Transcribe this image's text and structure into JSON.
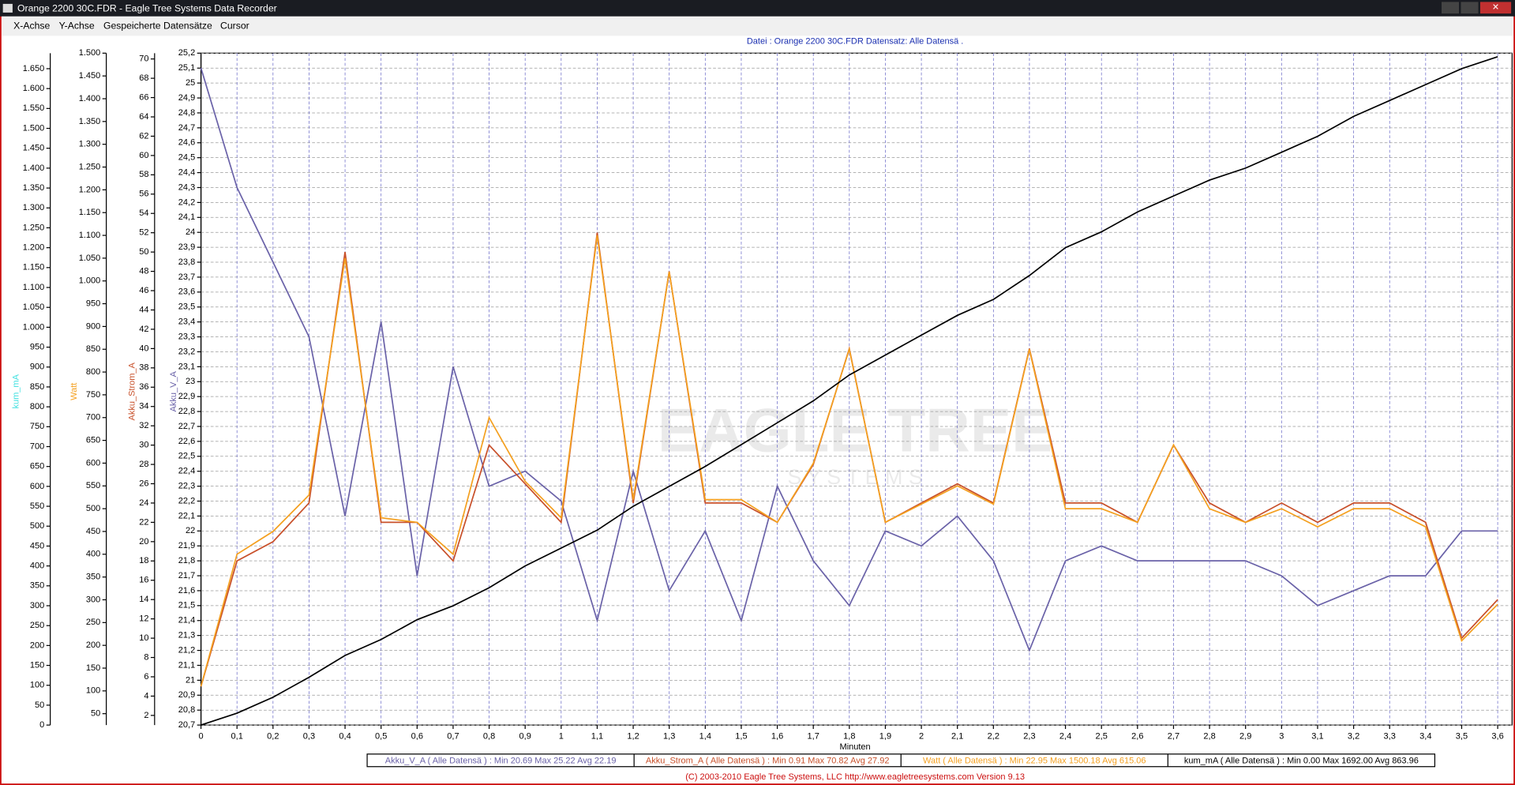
{
  "window": {
    "title": "Orange 2200 30C.FDR - Eagle Tree Systems Data Recorder",
    "menu": [
      "X-Achse",
      "Y-Achse",
      "Gespeicherte Datensätze",
      "Cursor"
    ]
  },
  "chart_data": {
    "type": "line",
    "subtitle": "Datei : Orange 2200 30C.FDR   Datensatz: Alle Datensä .",
    "x_label": "Minuten",
    "watermark": [
      "EAGLE TREE",
      "S Y S T E M S"
    ],
    "grid": true,
    "x": [
      0,
      0.1,
      0.2,
      0.3,
      0.4,
      0.5,
      0.6,
      0.7,
      0.8,
      0.9,
      1.0,
      1.1,
      1.2,
      1.3,
      1.4,
      1.5,
      1.6,
      1.7,
      1.8,
      1.9,
      2.0,
      2.1,
      2.2,
      2.3,
      2.4,
      2.5,
      2.6,
      2.7,
      2.8,
      2.9,
      3.0,
      3.1,
      3.2,
      3.3,
      3.4,
      3.5,
      3.6
    ],
    "xlim": [
      0,
      3.64
    ],
    "xticks": [
      0,
      {
        "value": 0.1,
        "label": "0,1"
      },
      {
        "value": 0.2,
        "label": "0,2"
      },
      {
        "value": 0.3,
        "label": "0,3"
      },
      {
        "value": 0.4,
        "label": "0,4"
      },
      {
        "value": 0.5,
        "label": "0,5"
      },
      {
        "value": 0.6,
        "label": "0,6"
      },
      {
        "value": 0.7,
        "label": "0,7"
      },
      {
        "value": 0.8,
        "label": "0,8"
      },
      {
        "value": 0.9,
        "label": "0,9"
      },
      1,
      {
        "value": 1.1,
        "label": "1,1"
      },
      {
        "value": 1.2,
        "label": "1,2"
      },
      {
        "value": 1.3,
        "label": "1,3"
      },
      {
        "value": 1.4,
        "label": "1,4"
      },
      {
        "value": 1.5,
        "label": "1,5"
      },
      {
        "value": 1.6,
        "label": "1,6"
      },
      {
        "value": 1.7,
        "label": "1,7"
      },
      {
        "value": 1.8,
        "label": "1,8"
      },
      {
        "value": 1.9,
        "label": "1,9"
      },
      2,
      {
        "value": 2.1,
        "label": "2,1"
      },
      {
        "value": 2.2,
        "label": "2,2"
      },
      {
        "value": 2.3,
        "label": "2,3"
      },
      {
        "value": 2.4,
        "label": "2,4"
      },
      {
        "value": 2.5,
        "label": "2,5"
      },
      {
        "value": 2.6,
        "label": "2,6"
      },
      {
        "value": 2.7,
        "label": "2,7"
      },
      {
        "value": 2.8,
        "label": "2,8"
      },
      {
        "value": 2.9,
        "label": "2,9"
      },
      3,
      {
        "value": 3.1,
        "label": "3,1"
      },
      {
        "value": 3.2,
        "label": "3,2"
      },
      {
        "value": 3.3,
        "label": "3,3"
      },
      {
        "value": 3.4,
        "label": "3,4"
      },
      {
        "value": 3.5,
        "label": "3,5"
      },
      {
        "value": 3.6,
        "label": "3,6"
      }
    ],
    "ylim": [
      0,
      1689
    ],
    "yticks": [
      0,
      50,
      100,
      150,
      200,
      250,
      300,
      350,
      400,
      450,
      500,
      550,
      600,
      650,
      700,
      750,
      800,
      850,
      900,
      950,
      {
        "value": 1000,
        "label": "1.000"
      },
      {
        "value": 1050,
        "label": "1.050"
      },
      {
        "value": 1100,
        "label": "1.100"
      },
      {
        "value": 1150,
        "label": "1.150"
      },
      {
        "value": 1200,
        "label": "1.200"
      },
      {
        "value": 1250,
        "label": "1.250"
      },
      {
        "value": 1300,
        "label": "1.300"
      },
      {
        "value": 1350,
        "label": "1.350"
      },
      {
        "value": 1400,
        "label": "1.400"
      },
      {
        "value": 1450,
        "label": "1.450"
      },
      {
        "value": 1500,
        "label": "1.500"
      },
      {
        "value": 1550,
        "label": "1.550"
      },
      {
        "value": 1600,
        "label": "1.600"
      },
      {
        "value": 1650,
        "label": "1.650"
      }
    ],
    "y2lim": [
      25,
      1500
    ],
    "y2ticks": [
      50,
      100,
      150,
      200,
      250,
      300,
      350,
      400,
      450,
      500,
      550,
      600,
      650,
      700,
      750,
      800,
      850,
      900,
      950,
      {
        "value": 1000,
        "label": "1.000"
      },
      {
        "value": 1050,
        "label": "1.050"
      },
      {
        "value": 1100,
        "label": "1.100"
      },
      {
        "value": 1150,
        "label": "1.150"
      },
      {
        "value": 1200,
        "label": "1.200"
      },
      {
        "value": 1250,
        "label": "1.250"
      },
      {
        "value": 1300,
        "label": "1.300"
      },
      {
        "value": 1350,
        "label": "1.350"
      },
      {
        "value": 1400,
        "label": "1.400"
      },
      {
        "value": 1450,
        "label": "1.450"
      },
      {
        "value": 1500,
        "label": "1.500"
      }
    ],
    "y3lim": [
      1,
      70.6
    ],
    "y3ticks": [
      2,
      4,
      6,
      8,
      10,
      12,
      14,
      16,
      18,
      20,
      22,
      24,
      26,
      28,
      30,
      32,
      34,
      36,
      38,
      40,
      42,
      44,
      46,
      48,
      50,
      52,
      54,
      56,
      58,
      60,
      62,
      64,
      66,
      68,
      70
    ],
    "y4lim": [
      20.7,
      25.2
    ],
    "y4ticks": [
      {
        "value": 20.7,
        "label": "20,7"
      },
      {
        "value": 20.8,
        "label": "20,8"
      },
      {
        "value": 20.9,
        "label": "20,9"
      },
      21,
      {
        "value": 21.1,
        "label": "21,1"
      },
      {
        "value": 21.2,
        "label": "21,2"
      },
      {
        "value": 21.3,
        "label": "21,3"
      },
      {
        "value": 21.4,
        "label": "21,4"
      },
      {
        "value": 21.5,
        "label": "21,5"
      },
      {
        "value": 21.6,
        "label": "21,6"
      },
      {
        "value": 21.7,
        "label": "21,7"
      },
      {
        "value": 21.8,
        "label": "21,8"
      },
      {
        "value": 21.9,
        "label": "21,9"
      },
      22,
      {
        "value": 22.1,
        "label": "22,1"
      },
      {
        "value": 22.2,
        "label": "22,2"
      },
      {
        "value": 22.3,
        "label": "22,3"
      },
      {
        "value": 22.4,
        "label": "22,4"
      },
      {
        "value": 22.5,
        "label": "22,5"
      },
      {
        "value": 22.6,
        "label": "22,6"
      },
      {
        "value": 22.7,
        "label": "22,7"
      },
      {
        "value": 22.8,
        "label": "22,8"
      },
      {
        "value": 22.9,
        "label": "22,9"
      },
      23,
      {
        "value": 23.1,
        "label": "23,1"
      },
      {
        "value": 23.2,
        "label": "23,2"
      },
      {
        "value": 23.3,
        "label": "23,3"
      },
      {
        "value": 23.4,
        "label": "23,4"
      },
      {
        "value": 23.5,
        "label": "23,5"
      },
      {
        "value": 23.6,
        "label": "23,6"
      },
      {
        "value": 23.7,
        "label": "23,7"
      },
      {
        "value": 23.8,
        "label": "23,8"
      },
      {
        "value": 23.9,
        "label": "23,9"
      },
      24,
      {
        "value": 24.1,
        "label": "24,1"
      },
      {
        "value": 24.2,
        "label": "24,2"
      },
      {
        "value": 24.3,
        "label": "24,3"
      },
      {
        "value": 24.4,
        "label": "24,4"
      },
      {
        "value": 24.5,
        "label": "24,5"
      },
      {
        "value": 24.6,
        "label": "24,6"
      },
      {
        "value": 24.7,
        "label": "24,7"
      },
      {
        "value": 24.8,
        "label": "24,8"
      },
      {
        "value": 24.9,
        "label": "24,9"
      },
      25,
      {
        "value": 25.1,
        "label": "25,1"
      },
      {
        "value": 25.2,
        "label": "25,2"
      }
    ],
    "series": [
      {
        "name": "Akku_V_A",
        "axis": "y4",
        "color": "#6a62a8",
        "label_color": "#6a62a8",
        "stats": "Akku_V_A ( Alle Datensä ) : Min 20.69   Max 25.22   Avg 22.19",
        "values": [
          25.1,
          24.3,
          23.8,
          23.3,
          22.1,
          23.4,
          21.7,
          23.1,
          22.3,
          22.4,
          22.2,
          21.4,
          22.4,
          21.6,
          22.0,
          21.4,
          22.3,
          21.8,
          21.5,
          22.0,
          21.9,
          22.1,
          21.8,
          21.2,
          21.8,
          21.9,
          21.8,
          21.8,
          21.8,
          21.8,
          21.7,
          21.5,
          21.6,
          21.7,
          21.7,
          22.0,
          22.0
        ]
      },
      {
        "name": "Akku_Strom_A",
        "axis": "y3",
        "color": "#c8502a",
        "label_color": "#c8502a",
        "stats": "Akku_Strom_A ( Alle Datensä ) : Min 0.91   Max 70.82   Avg 27.92",
        "values": [
          5,
          18,
          20,
          24,
          50,
          22,
          22,
          18,
          30,
          26,
          22,
          52,
          24,
          48,
          24,
          24,
          22,
          28,
          40,
          22,
          24,
          26,
          24,
          40,
          24,
          24,
          22,
          30,
          24,
          22,
          24,
          22,
          24,
          24,
          22,
          10,
          14
        ]
      },
      {
        "name": "Watt",
        "axis": "y2",
        "color": "#f4a020",
        "label_color": "#f4a020",
        "stats": "Watt ( Alle Datensä ) : Min 22.95   Max 1500.18   Avg 615.06",
        "values": [
          110,
          400,
          450,
          530,
          1050,
          480,
          470,
          400,
          700,
          560,
          480,
          1100,
          520,
          1020,
          520,
          520,
          470,
          600,
          850,
          470,
          510,
          550,
          510,
          850,
          500,
          500,
          470,
          640,
          500,
          470,
          500,
          460,
          500,
          500,
          460,
          210,
          290
        ]
      },
      {
        "name": "kum_mA",
        "axis": "y",
        "color": "#000000",
        "label_color": "#40e0e0",
        "stats": "kum_mA ( Alle Datensä ) : Min 0.00   Max 1692.00   Avg 863.96",
        "values": [
          0,
          30,
          70,
          120,
          175,
          215,
          265,
          300,
          345,
          400,
          445,
          490,
          550,
          600,
          650,
          705,
          760,
          815,
          880,
          930,
          980,
          1030,
          1070,
          1130,
          1200,
          1240,
          1290,
          1330,
          1370,
          1400,
          1440,
          1480,
          1530,
          1570,
          1610,
          1650,
          1680
        ]
      }
    ]
  },
  "footer": "(C) 2003-2010 Eagle Tree Systems, LLC      http://www.eagletreesystems.com      Version 9.13"
}
